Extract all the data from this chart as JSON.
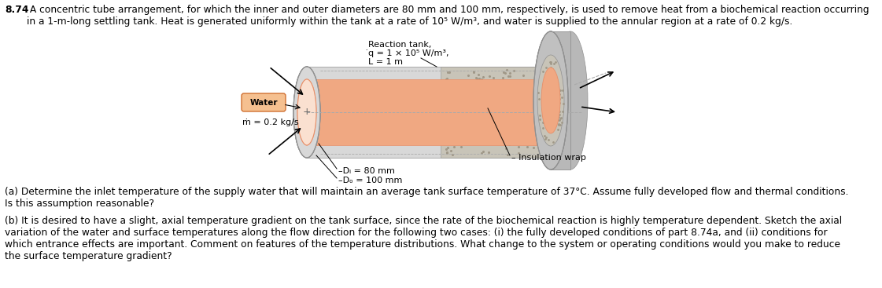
{
  "title_bold": "8.74",
  "title_text": " A concentric tube arrangement, for which the inner and outer diameters are 80 mm and 100 mm, respectively, is used to remove heat from a biochemical reaction occurring\nin a 1-m-long settling tank. Heat is generated uniformly within the tank at a rate of 10⁵ W/m³, and water is supplied to the annular region at a rate of 0.2 kg/s.",
  "reaction_tank_label": "Reaction tank,",
  "qdot_label": "̇q = 1 × 10⁵ W/m³,",
  "L_label": "L = 1 m",
  "water_label": "Water",
  "mdot_label": "ṁ = 0.2 kg/s",
  "Di_label": "–Dᵢ = 80 mm",
  "Do_label": "–Dₒ = 100 mm",
  "insulation_label": "– Insulation wrap",
  "part_a": "(a) Determine the inlet temperature of the supply water that will maintain an average tank surface temperature of 37°C. Assume fully developed flow and thermal conditions.\nIs this assumption reasonable?",
  "part_b": "(b) It is desired to have a slight, axial temperature gradient on the tank surface, since the rate of the biochemical reaction is highly temperature dependent. Sketch the axial\nvariation of the water and surface temperatures along the flow direction for the following two cases: (i) the fully developed conditions of part 8.74a, and (ii) conditions for\nwhich entrance effects are important. Comment on features of the temperature distributions. What change to the system or operating conditions would you make to reduce\nthe surface temperature gradient?",
  "bg_color": "#ffffff",
  "text_color": "#000000",
  "salmon_dark": "#e8906a",
  "salmon_color": "#f0a882",
  "light_salmon": "#f5c8a8",
  "very_light_salmon": "#fae0d0",
  "gray_light": "#d8d8d8",
  "gray_med": "#c0c0c0",
  "gray_dark": "#909090",
  "gray_flange": "#b8b8b8",
  "insulation_color": "#c8c4b8",
  "annular_color": "#e8e4de",
  "dashed_color": "#aaaaaa"
}
